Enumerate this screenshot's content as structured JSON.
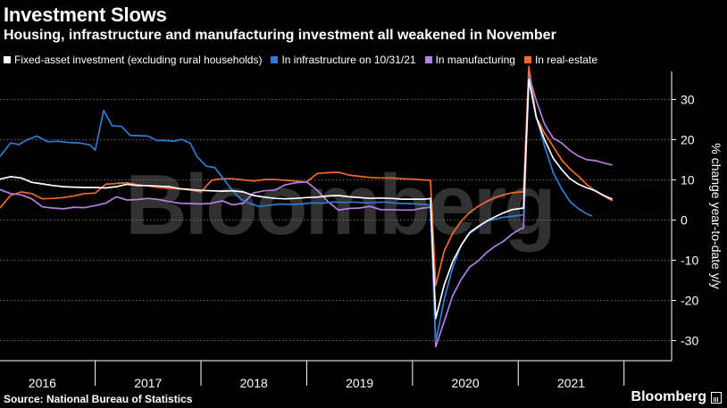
{
  "header": {
    "title": "Investment Slows",
    "subtitle": "Housing, infrastructure and manufacturing investment all weakened in November"
  },
  "footer": {
    "source": "Source: National Bureau of Statistics",
    "brand": "Bloomberg"
  },
  "watermark": "Bloomberg",
  "chart_data": {
    "type": "line",
    "title": "Investment Slows",
    "subtitle": "Housing, infrastructure and manufacturing investment all weakened in November",
    "ylabel": "% change year-to-date y/y",
    "ylim": [
      -35,
      37
    ],
    "xlim": [
      2015.6,
      2021.95
    ],
    "yticks": [
      30,
      20,
      10,
      0,
      -10,
      -20,
      -30
    ],
    "xtick_labels": [
      {
        "label": "2016",
        "x": 2016.0
      },
      {
        "label": "2017",
        "x": 2017.0
      },
      {
        "label": "2018",
        "x": 2018.0
      },
      {
        "label": "2019",
        "x": 2019.0
      },
      {
        "label": "2020",
        "x": 2020.0
      },
      {
        "label": "2021",
        "x": 2021.0
      }
    ],
    "year_dividers": [
      2016.5,
      2017.5,
      2018.5,
      2019.5,
      2020.5,
      2021.5
    ],
    "y_axis_position": "right",
    "grid": "horizontal dotted",
    "legend_position": "top-left",
    "series": [
      {
        "name": "Fixed-asset investment (excluding rural households)",
        "color": "#ffffff",
        "points": [
          [
            2015.6,
            10.2
          ],
          [
            2015.7,
            10.8
          ],
          [
            2015.8,
            10.5
          ],
          [
            2015.9,
            9.4
          ],
          [
            2016.0,
            9.0
          ],
          [
            2016.1,
            8.6
          ],
          [
            2016.2,
            8.3
          ],
          [
            2016.3,
            8.2
          ],
          [
            2016.4,
            8.1
          ],
          [
            2016.5,
            8.1
          ],
          [
            2016.6,
            8.0
          ],
          [
            2016.7,
            8.3
          ],
          [
            2016.8,
            8.9
          ],
          [
            2016.9,
            8.6
          ],
          [
            2017.0,
            8.6
          ],
          [
            2017.1,
            8.5
          ],
          [
            2017.2,
            8.3
          ],
          [
            2017.3,
            7.8
          ],
          [
            2017.4,
            7.6
          ],
          [
            2017.5,
            7.4
          ],
          [
            2017.6,
            7.3
          ],
          [
            2017.7,
            7.2
          ],
          [
            2017.8,
            7.3
          ],
          [
            2017.9,
            7.0
          ],
          [
            2018.0,
            6.1
          ],
          [
            2018.1,
            5.7
          ],
          [
            2018.2,
            5.4
          ],
          [
            2018.3,
            5.3
          ],
          [
            2018.4,
            5.4
          ],
          [
            2018.5,
            5.6
          ],
          [
            2018.6,
            5.7
          ],
          [
            2018.7,
            6.0
          ],
          [
            2018.8,
            6.1
          ],
          [
            2018.9,
            5.8
          ],
          [
            2019.0,
            5.6
          ],
          [
            2019.1,
            5.4
          ],
          [
            2019.2,
            5.5
          ],
          [
            2019.3,
            5.4
          ],
          [
            2019.4,
            5.2
          ],
          [
            2019.5,
            5.2
          ],
          [
            2019.6,
            5.2
          ],
          [
            2019.65,
            5.3
          ],
          [
            2019.67,
            5.4
          ],
          [
            2019.72,
            -24.5
          ],
          [
            2019.8,
            -16.1
          ],
          [
            2019.88,
            -10.3
          ],
          [
            2019.96,
            -6.3
          ],
          [
            2020.04,
            -3.1
          ],
          [
            2020.12,
            -1.6
          ],
          [
            2020.2,
            -0.3
          ],
          [
            2020.28,
            0.8
          ],
          [
            2020.36,
            1.8
          ],
          [
            2020.44,
            2.6
          ],
          [
            2020.52,
            2.9
          ],
          [
            2020.55,
            3.0
          ],
          [
            2020.6,
            35.0
          ],
          [
            2020.67,
            25.6
          ],
          [
            2020.75,
            19.9
          ],
          [
            2020.83,
            15.4
          ],
          [
            2020.91,
            12.6
          ],
          [
            2020.99,
            10.3
          ],
          [
            2021.07,
            8.9
          ],
          [
            2021.15,
            8.0
          ],
          [
            2021.23,
            7.3
          ],
          [
            2021.31,
            6.1
          ],
          [
            2021.39,
            5.2
          ]
        ]
      },
      {
        "name": "In infrastructure on 10/31/21",
        "color": "#2f7bd6",
        "points": [
          [
            2015.6,
            15.8
          ],
          [
            2015.7,
            19.2
          ],
          [
            2015.78,
            18.8
          ],
          [
            2015.85,
            19.9
          ],
          [
            2015.95,
            20.9
          ],
          [
            2016.05,
            19.5
          ],
          [
            2016.15,
            19.6
          ],
          [
            2016.25,
            19.3
          ],
          [
            2016.35,
            19.2
          ],
          [
            2016.45,
            18.7
          ],
          [
            2016.5,
            17.4
          ],
          [
            2016.58,
            27.3
          ],
          [
            2016.66,
            23.5
          ],
          [
            2016.75,
            23.3
          ],
          [
            2016.83,
            21.1
          ],
          [
            2016.92,
            21.0
          ],
          [
            2017.0,
            20.9
          ],
          [
            2017.08,
            19.8
          ],
          [
            2017.16,
            19.8
          ],
          [
            2017.24,
            19.6
          ],
          [
            2017.32,
            20.1
          ],
          [
            2017.4,
            19.1
          ],
          [
            2017.46,
            15.9
          ],
          [
            2017.55,
            13.4
          ],
          [
            2017.63,
            13.1
          ],
          [
            2017.71,
            10.4
          ],
          [
            2017.8,
            7.3
          ],
          [
            2017.88,
            5.2
          ],
          [
            2017.96,
            4.1
          ],
          [
            2018.05,
            3.4
          ],
          [
            2018.15,
            3.7
          ],
          [
            2018.25,
            4.0
          ],
          [
            2018.35,
            3.9
          ],
          [
            2018.45,
            4.0
          ],
          [
            2018.55,
            4.3
          ],
          [
            2018.65,
            4.2
          ],
          [
            2018.75,
            4.5
          ],
          [
            2018.85,
            4.4
          ],
          [
            2018.95,
            4.5
          ],
          [
            2019.05,
            4.3
          ],
          [
            2019.15,
            4.4
          ],
          [
            2019.25,
            4.5
          ],
          [
            2019.35,
            4.2
          ],
          [
            2019.45,
            4.1
          ],
          [
            2019.55,
            4.0
          ],
          [
            2019.65,
            3.8
          ],
          [
            2019.67,
            3.6
          ],
          [
            2019.72,
            -30.3
          ],
          [
            2019.8,
            -19.7
          ],
          [
            2019.88,
            -11.8
          ],
          [
            2019.96,
            -6.3
          ],
          [
            2020.04,
            -3.3
          ],
          [
            2020.12,
            -1.9
          ],
          [
            2020.2,
            -0.3
          ],
          [
            2020.28,
            0.2
          ],
          [
            2020.36,
            0.7
          ],
          [
            2020.44,
            0.9
          ],
          [
            2020.52,
            1.2
          ],
          [
            2020.55,
            1.3
          ],
          [
            2020.6,
            35.4
          ],
          [
            2020.67,
            25.8
          ],
          [
            2020.75,
            18.3
          ],
          [
            2020.83,
            11.8
          ],
          [
            2020.91,
            7.8
          ],
          [
            2020.99,
            4.6
          ],
          [
            2021.07,
            2.8
          ],
          [
            2021.15,
            1.5
          ],
          [
            2021.2,
            1.0
          ]
        ]
      },
      {
        "name": "In manufacturing",
        "color": "#b57ee0",
        "points": [
          [
            2015.6,
            7.6
          ],
          [
            2015.7,
            6.6
          ],
          [
            2015.8,
            6.3
          ],
          [
            2015.9,
            5.3
          ],
          [
            2016.0,
            3.3
          ],
          [
            2016.1,
            3.0
          ],
          [
            2016.2,
            2.8
          ],
          [
            2016.3,
            3.2
          ],
          [
            2016.4,
            3.1
          ],
          [
            2016.5,
            3.6
          ],
          [
            2016.6,
            4.2
          ],
          [
            2016.7,
            5.8
          ],
          [
            2016.8,
            5.0
          ],
          [
            2016.9,
            5.1
          ],
          [
            2017.0,
            5.4
          ],
          [
            2017.1,
            5.1
          ],
          [
            2017.2,
            4.6
          ],
          [
            2017.3,
            4.2
          ],
          [
            2017.4,
            4.1
          ],
          [
            2017.5,
            4.0
          ],
          [
            2017.6,
            4.2
          ],
          [
            2017.7,
            4.8
          ],
          [
            2017.8,
            3.8
          ],
          [
            2017.9,
            4.2
          ],
          [
            2018.0,
            6.8
          ],
          [
            2018.1,
            7.3
          ],
          [
            2018.2,
            7.5
          ],
          [
            2018.3,
            8.8
          ],
          [
            2018.4,
            9.3
          ],
          [
            2018.5,
            9.5
          ],
          [
            2018.6,
            7.4
          ],
          [
            2018.7,
            4.6
          ],
          [
            2018.8,
            2.5
          ],
          [
            2018.9,
            2.9
          ],
          [
            2019.0,
            3.0
          ],
          [
            2019.1,
            3.4
          ],
          [
            2019.2,
            2.6
          ],
          [
            2019.3,
            2.6
          ],
          [
            2019.4,
            2.5
          ],
          [
            2019.5,
            2.5
          ],
          [
            2019.6,
            3.0
          ],
          [
            2019.67,
            3.2
          ],
          [
            2019.72,
            -31.5
          ],
          [
            2019.8,
            -25.2
          ],
          [
            2019.88,
            -18.8
          ],
          [
            2019.96,
            -14.8
          ],
          [
            2020.04,
            -11.7
          ],
          [
            2020.12,
            -10.2
          ],
          [
            2020.2,
            -8.1
          ],
          [
            2020.28,
            -6.5
          ],
          [
            2020.36,
            -5.3
          ],
          [
            2020.44,
            -3.5
          ],
          [
            2020.52,
            -2.2
          ],
          [
            2020.55,
            -2.0
          ],
          [
            2020.6,
            36.0
          ],
          [
            2020.67,
            29.8
          ],
          [
            2020.75,
            23.8
          ],
          [
            2020.83,
            20.4
          ],
          [
            2020.91,
            19.2
          ],
          [
            2020.99,
            17.3
          ],
          [
            2021.07,
            15.9
          ],
          [
            2021.15,
            15.0
          ],
          [
            2021.23,
            14.8
          ],
          [
            2021.31,
            14.2
          ],
          [
            2021.39,
            13.7
          ]
        ]
      },
      {
        "name": "In real-estate",
        "color": "#f06a2a",
        "points": [
          [
            2015.6,
            3.0
          ],
          [
            2015.7,
            6.1
          ],
          [
            2015.8,
            7.0
          ],
          [
            2015.9,
            6.6
          ],
          [
            2016.0,
            5.3
          ],
          [
            2016.1,
            5.4
          ],
          [
            2016.2,
            5.6
          ],
          [
            2016.3,
            6.0
          ],
          [
            2016.4,
            6.6
          ],
          [
            2016.5,
            6.7
          ],
          [
            2016.6,
            8.9
          ],
          [
            2016.7,
            9.1
          ],
          [
            2016.8,
            9.3
          ],
          [
            2016.9,
            8.8
          ],
          [
            2017.0,
            8.5
          ],
          [
            2017.1,
            8.1
          ],
          [
            2017.2,
            7.9
          ],
          [
            2017.3,
            7.8
          ],
          [
            2017.4,
            7.5
          ],
          [
            2017.5,
            7.0
          ],
          [
            2017.6,
            9.9
          ],
          [
            2017.7,
            10.3
          ],
          [
            2017.8,
            10.3
          ],
          [
            2017.9,
            10.0
          ],
          [
            2018.0,
            9.7
          ],
          [
            2018.1,
            10.1
          ],
          [
            2018.2,
            10.1
          ],
          [
            2018.3,
            9.9
          ],
          [
            2018.4,
            9.7
          ],
          [
            2018.5,
            9.5
          ],
          [
            2018.6,
            11.6
          ],
          [
            2018.7,
            11.8
          ],
          [
            2018.8,
            11.9
          ],
          [
            2018.9,
            11.2
          ],
          [
            2019.0,
            10.9
          ],
          [
            2019.1,
            10.6
          ],
          [
            2019.2,
            10.5
          ],
          [
            2019.3,
            10.5
          ],
          [
            2019.4,
            10.3
          ],
          [
            2019.5,
            10.2
          ],
          [
            2019.6,
            10.0
          ],
          [
            2019.67,
            9.9
          ],
          [
            2019.72,
            -16.3
          ],
          [
            2019.8,
            -7.7
          ],
          [
            2019.88,
            -3.3
          ],
          [
            2019.96,
            -0.3
          ],
          [
            2020.04,
            1.9
          ],
          [
            2020.12,
            3.4
          ],
          [
            2020.2,
            4.6
          ],
          [
            2020.28,
            5.6
          ],
          [
            2020.36,
            6.3
          ],
          [
            2020.44,
            6.8
          ],
          [
            2020.52,
            7.0
          ],
          [
            2020.55,
            7.0
          ],
          [
            2020.6,
            38.3
          ],
          [
            2020.67,
            25.6
          ],
          [
            2020.75,
            21.6
          ],
          [
            2020.83,
            18.3
          ],
          [
            2020.91,
            15.0
          ],
          [
            2020.99,
            12.7
          ],
          [
            2021.07,
            10.9
          ],
          [
            2021.15,
            8.8
          ],
          [
            2021.23,
            7.2
          ],
          [
            2021.31,
            6.0
          ],
          [
            2021.39,
            4.8
          ]
        ]
      }
    ]
  }
}
